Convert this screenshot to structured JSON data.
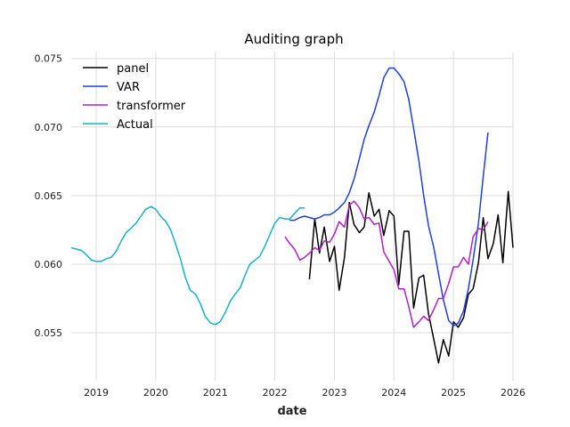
{
  "chart_data": {
    "type": "line",
    "title": "Auditing graph",
    "xlabel": "date",
    "ylabel": "",
    "xlim": [
      2018.58,
      2026.0
    ],
    "ylim": [
      0.0515,
      0.0755
    ],
    "x_ticks": [
      2019,
      2020,
      2021,
      2022,
      2023,
      2024,
      2025,
      2026
    ],
    "x_tick_labels": [
      "2019",
      "2020",
      "2021",
      "2022",
      "2023",
      "2024",
      "2025",
      "2026"
    ],
    "y_ticks": [
      0.055,
      0.06,
      0.065,
      0.07,
      0.075
    ],
    "y_tick_labels": [
      "0.055",
      "0.060",
      "0.065",
      "0.070",
      "0.075"
    ],
    "grid": true,
    "legend_position": "top-left",
    "series": [
      {
        "name": "panel",
        "color": "#000000",
        "points": [
          [
            2022.58,
            0.0589
          ],
          [
            2022.67,
            0.0633
          ],
          [
            2022.75,
            0.0608
          ],
          [
            2022.83,
            0.0627
          ],
          [
            2022.92,
            0.0602
          ],
          [
            2023.0,
            0.0613
          ],
          [
            2023.08,
            0.0581
          ],
          [
            2023.17,
            0.0605
          ],
          [
            2023.25,
            0.0645
          ],
          [
            2023.33,
            0.0629
          ],
          [
            2023.42,
            0.0623
          ],
          [
            2023.5,
            0.0627
          ],
          [
            2023.58,
            0.0652
          ],
          [
            2023.67,
            0.0635
          ],
          [
            2023.75,
            0.064
          ],
          [
            2023.83,
            0.0621
          ],
          [
            2023.92,
            0.0639
          ],
          [
            2024.0,
            0.0635
          ],
          [
            2024.08,
            0.0585
          ],
          [
            2024.17,
            0.0624
          ],
          [
            2024.25,
            0.0624
          ],
          [
            2024.33,
            0.0568
          ],
          [
            2024.42,
            0.059
          ],
          [
            2024.5,
            0.0592
          ],
          [
            2024.58,
            0.0564
          ],
          [
            2024.67,
            0.0545
          ],
          [
            2024.75,
            0.0528
          ],
          [
            2024.83,
            0.0545
          ],
          [
            2024.92,
            0.0533
          ],
          [
            2025.0,
            0.0558
          ],
          [
            2025.08,
            0.0554
          ],
          [
            2025.17,
            0.0561
          ],
          [
            2025.25,
            0.0578
          ],
          [
            2025.33,
            0.0582
          ],
          [
            2025.42,
            0.0601
          ],
          [
            2025.5,
            0.0634
          ],
          [
            2025.58,
            0.0604
          ],
          [
            2025.67,
            0.0615
          ],
          [
            2025.75,
            0.0636
          ],
          [
            2025.83,
            0.0601
          ],
          [
            2025.92,
            0.0653
          ],
          [
            2026.0,
            0.0612
          ]
        ]
      },
      {
        "name": "VAR",
        "color": "#1f3fe0",
        "points": [
          [
            2022.25,
            0.0632
          ],
          [
            2022.33,
            0.0632
          ],
          [
            2022.42,
            0.0634
          ],
          [
            2022.5,
            0.0635
          ],
          [
            2022.58,
            0.0634
          ],
          [
            2022.67,
            0.0633
          ],
          [
            2022.75,
            0.0634
          ],
          [
            2022.83,
            0.0636
          ],
          [
            2022.92,
            0.0636
          ],
          [
            2023.0,
            0.0638
          ],
          [
            2023.08,
            0.0641
          ],
          [
            2023.17,
            0.0645
          ],
          [
            2023.25,
            0.0652
          ],
          [
            2023.33,
            0.0662
          ],
          [
            2023.42,
            0.0677
          ],
          [
            2023.5,
            0.0691
          ],
          [
            2023.58,
            0.0701
          ],
          [
            2023.67,
            0.0711
          ],
          [
            2023.75,
            0.0723
          ],
          [
            2023.83,
            0.0736
          ],
          [
            2023.92,
            0.0743
          ],
          [
            2024.0,
            0.0743
          ],
          [
            2024.08,
            0.0739
          ],
          [
            2024.17,
            0.0733
          ],
          [
            2024.25,
            0.072
          ],
          [
            2024.33,
            0.0699
          ],
          [
            2024.42,
            0.0675
          ],
          [
            2024.5,
            0.065
          ],
          [
            2024.58,
            0.0628
          ],
          [
            2024.67,
            0.0612
          ],
          [
            2024.75,
            0.0593
          ],
          [
            2024.83,
            0.0574
          ],
          [
            2024.92,
            0.0559
          ],
          [
            2025.0,
            0.0555
          ],
          [
            2025.08,
            0.0557
          ],
          [
            2025.17,
            0.0566
          ],
          [
            2025.25,
            0.0582
          ],
          [
            2025.33,
            0.0603
          ],
          [
            2025.42,
            0.063
          ],
          [
            2025.5,
            0.0664
          ],
          [
            2025.58,
            0.0696
          ]
        ]
      },
      {
        "name": "transformer",
        "color": "#b020c8",
        "points": [
          [
            2022.17,
            0.062
          ],
          [
            2022.25,
            0.0615
          ],
          [
            2022.33,
            0.0611
          ],
          [
            2022.42,
            0.0603
          ],
          [
            2022.5,
            0.0605
          ],
          [
            2022.58,
            0.0608
          ],
          [
            2022.67,
            0.0612
          ],
          [
            2022.75,
            0.061
          ],
          [
            2022.83,
            0.0617
          ],
          [
            2022.92,
            0.0616
          ],
          [
            2023.0,
            0.0622
          ],
          [
            2023.08,
            0.0631
          ],
          [
            2023.17,
            0.0627
          ],
          [
            2023.25,
            0.0643
          ],
          [
            2023.33,
            0.0646
          ],
          [
            2023.42,
            0.0641
          ],
          [
            2023.5,
            0.0633
          ],
          [
            2023.58,
            0.0634
          ],
          [
            2023.67,
            0.0629
          ],
          [
            2023.75,
            0.063
          ],
          [
            2023.83,
            0.0609
          ],
          [
            2023.92,
            0.0602
          ],
          [
            2024.0,
            0.0596
          ],
          [
            2024.08,
            0.0582
          ],
          [
            2024.17,
            0.0582
          ],
          [
            2024.25,
            0.0569
          ],
          [
            2024.33,
            0.0554
          ],
          [
            2024.42,
            0.0558
          ],
          [
            2024.5,
            0.0562
          ],
          [
            2024.58,
            0.0559
          ],
          [
            2024.67,
            0.0567
          ],
          [
            2024.75,
            0.0575
          ],
          [
            2024.83,
            0.0575
          ],
          [
            2024.92,
            0.0586
          ],
          [
            2025.0,
            0.0598
          ],
          [
            2025.08,
            0.0598
          ],
          [
            2025.17,
            0.0605
          ],
          [
            2025.25,
            0.06
          ],
          [
            2025.33,
            0.062
          ],
          [
            2025.42,
            0.0626
          ],
          [
            2025.5,
            0.0625
          ],
          [
            2025.58,
            0.0631
          ]
        ]
      },
      {
        "name": "Actual",
        "color": "#17b3c4",
        "points": [
          [
            2018.58,
            0.0612
          ],
          [
            2018.67,
            0.0611
          ],
          [
            2018.75,
            0.061
          ],
          [
            2018.83,
            0.0607
          ],
          [
            2018.92,
            0.0603
          ],
          [
            2019.0,
            0.0602
          ],
          [
            2019.08,
            0.0602
          ],
          [
            2019.17,
            0.0604
          ],
          [
            2019.25,
            0.0605
          ],
          [
            2019.33,
            0.0609
          ],
          [
            2019.42,
            0.0617
          ],
          [
            2019.5,
            0.0623
          ],
          [
            2019.58,
            0.0626
          ],
          [
            2019.67,
            0.063
          ],
          [
            2019.75,
            0.0635
          ],
          [
            2019.83,
            0.064
          ],
          [
            2019.92,
            0.0642
          ],
          [
            2020.0,
            0.064
          ],
          [
            2020.08,
            0.0635
          ],
          [
            2020.17,
            0.0631
          ],
          [
            2020.25,
            0.0625
          ],
          [
            2020.33,
            0.0615
          ],
          [
            2020.42,
            0.0603
          ],
          [
            2020.5,
            0.059
          ],
          [
            2020.58,
            0.0581
          ],
          [
            2020.67,
            0.0578
          ],
          [
            2020.75,
            0.0571
          ],
          [
            2020.83,
            0.0562
          ],
          [
            2020.92,
            0.0557
          ],
          [
            2021.0,
            0.0556
          ],
          [
            2021.08,
            0.0558
          ],
          [
            2021.17,
            0.0565
          ],
          [
            2021.25,
            0.0573
          ],
          [
            2021.33,
            0.0578
          ],
          [
            2021.42,
            0.0583
          ],
          [
            2021.5,
            0.0592
          ],
          [
            2021.58,
            0.06
          ],
          [
            2021.67,
            0.0603
          ],
          [
            2021.75,
            0.0606
          ],
          [
            2021.83,
            0.0613
          ],
          [
            2021.92,
            0.0622
          ],
          [
            2022.0,
            0.063
          ],
          [
            2022.08,
            0.0634
          ],
          [
            2022.17,
            0.0633
          ],
          [
            2022.25,
            0.0633
          ],
          [
            2022.33,
            0.0637
          ],
          [
            2022.42,
            0.0641
          ],
          [
            2022.5,
            0.0641
          ]
        ]
      }
    ]
  }
}
